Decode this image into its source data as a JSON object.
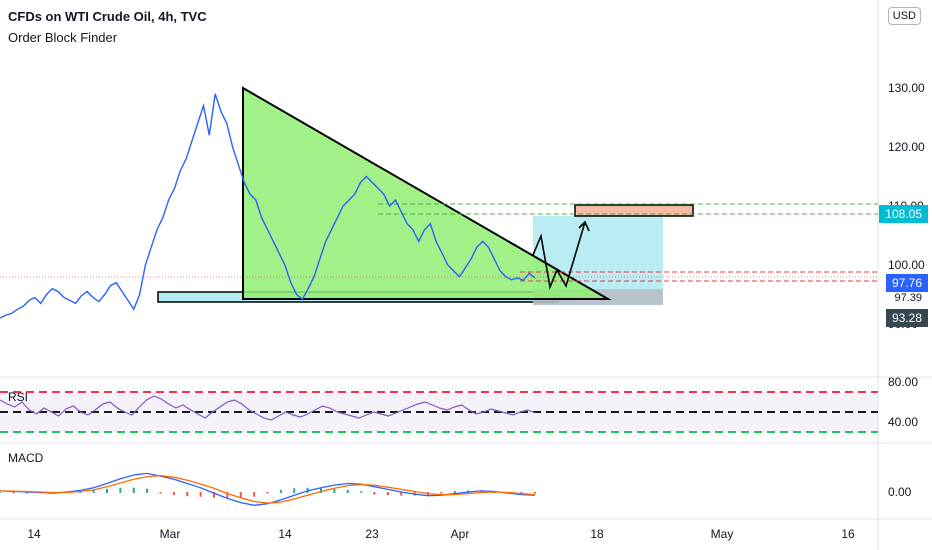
{
  "header": {
    "title": "CFDs on WTI Crude Oil, 4h, TVC",
    "indicator": "Order Block Finder",
    "currency": "USD"
  },
  "indicators": {
    "rsi_label": "RSI",
    "macd_label": "MACD"
  },
  "price_tags": [
    {
      "value": "108.05",
      "color": "#00bcd4"
    },
    {
      "value": "97.76",
      "color": "#2962ff"
    },
    {
      "value": "97.39",
      "color": ""
    },
    {
      "value": "93.28",
      "color": "#37474f"
    }
  ],
  "chart_data": {
    "type": "line",
    "price_axis": {
      "ticks": [
        "130.00",
        "120.00",
        "110.00",
        "100.00",
        "90.00"
      ],
      "ylim": [
        88,
        136
      ]
    },
    "rsi_axis": {
      "ticks": [
        "80.00",
        "40.00"
      ],
      "levels": [
        70,
        50,
        30
      ]
    },
    "macd_axis": {
      "ticks": [
        "0.00"
      ]
    },
    "x_ticks": [
      "14",
      "Mar",
      "14",
      "23",
      "Apr",
      "18",
      "May",
      "16"
    ],
    "series": [
      {
        "values": [
          91,
          91.5,
          91.8,
          92.5,
          93,
          94,
          94.5,
          93.5,
          95,
          96,
          95.5,
          94.5,
          94,
          93.5,
          94.8,
          95.5,
          94.5,
          93.8,
          95,
          96.5,
          97,
          95.5,
          94,
          92.5,
          95,
          100,
          103,
          106,
          108,
          111,
          113,
          116,
          118,
          121,
          124,
          127,
          122,
          129,
          126,
          124,
          120,
          117,
          114,
          112,
          111,
          108,
          106,
          104,
          102,
          100,
          97,
          95,
          94.2,
          96,
          98,
          101,
          104,
          106,
          108,
          110,
          111,
          112,
          114,
          115,
          114,
          113,
          112,
          110,
          111,
          109,
          107,
          106,
          104,
          106,
          107,
          104,
          102,
          100,
          99,
          98,
          99.5,
          101,
          103,
          104,
          103,
          101,
          99,
          98,
          97.5,
          97.8,
          97.4,
          98.6,
          97.8
        ]
      },
      {
        "values": [
          62,
          58,
          55,
          60,
          52,
          48,
          54,
          50,
          46,
          53,
          56,
          50,
          47,
          52,
          58,
          60,
          54,
          50,
          47,
          55,
          62,
          66,
          63,
          58,
          54,
          57,
          52,
          48,
          44,
          50,
          55,
          60,
          62,
          58,
          52,
          48,
          44,
          42,
          46,
          50,
          47,
          45,
          48,
          52,
          56,
          54,
          50,
          48,
          46,
          44,
          47,
          50,
          48,
          46,
          49,
          52,
          55,
          58,
          60,
          57,
          54,
          52,
          55,
          57,
          52,
          48,
          50,
          53,
          51,
          49,
          47,
          50,
          52,
          49
        ]
      },
      {
        "values": [
          0.2,
          0.1,
          0.0,
          -0.1,
          -0.2,
          0.0,
          0.3,
          0.8,
          1.6,
          2.5,
          3.2,
          3.5,
          3.0,
          2.4,
          1.6,
          0.8,
          -0.2,
          -1.2,
          -2.0,
          -2.5,
          -2.2,
          -1.5,
          -0.6,
          0.2,
          0.8,
          1.3,
          1.6,
          1.5,
          1.0,
          0.5,
          0.0,
          -0.4,
          -0.7,
          -0.6,
          -0.3,
          0.0,
          0.2,
          0.1,
          -0.2,
          -0.5,
          -0.6
        ]
      },
      {
        "values": [
          0.2,
          0.15,
          0.1,
          0.0,
          -0.1,
          -0.1,
          0.1,
          0.4,
          1.0,
          1.7,
          2.4,
          2.9,
          3.1,
          2.8,
          2.2,
          1.5,
          0.7,
          -0.3,
          -1.1,
          -1.8,
          -2.1,
          -1.9,
          -1.3,
          -0.6,
          0.1,
          0.7,
          1.2,
          1.4,
          1.3,
          0.9,
          0.5,
          0.1,
          -0.3,
          -0.5,
          -0.5,
          -0.3,
          -0.1,
          0.0,
          -0.1,
          -0.3,
          -0.5
        ]
      }
    ]
  }
}
